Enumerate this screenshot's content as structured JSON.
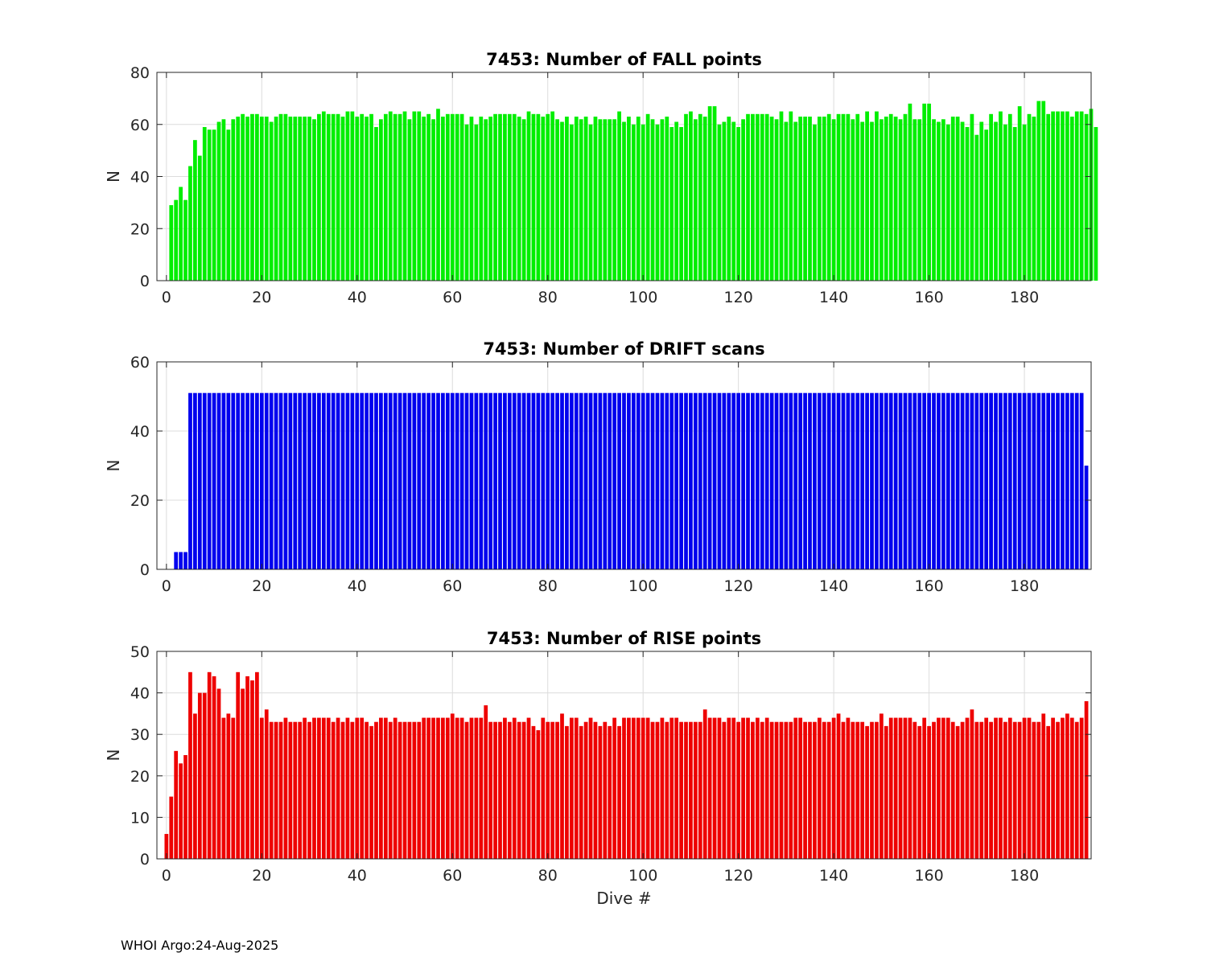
{
  "footer": {
    "text": "WHOI Argo:24-Aug-2025"
  },
  "chart_data": [
    {
      "type": "bar",
      "title": "7453: Number of FALL points",
      "xlabel": "",
      "ylabel": "N",
      "color": "#00ee00",
      "xlim": [
        -2,
        194
      ],
      "ylim": [
        0,
        80
      ],
      "xticks": [
        0,
        20,
        40,
        60,
        80,
        100,
        120,
        140,
        160,
        180
      ],
      "yticks": [
        0,
        20,
        40,
        60,
        80
      ],
      "grid": true,
      "x_start": 1,
      "values": [
        29,
        31,
        36,
        31,
        44,
        54,
        48,
        59,
        58,
        58,
        61,
        62,
        58,
        62,
        63,
        64,
        63,
        64,
        64,
        63,
        63,
        61,
        63,
        64,
        64,
        63,
        63,
        63,
        63,
        63,
        62,
        64,
        65,
        64,
        64,
        64,
        63,
        65,
        65,
        63,
        64,
        63,
        64,
        59,
        62,
        64,
        65,
        64,
        64,
        65,
        62,
        65,
        65,
        63,
        64,
        62,
        66,
        63,
        64,
        64,
        64,
        64,
        60,
        63,
        60,
        63,
        62,
        63,
        64,
        64,
        64,
        64,
        64,
        63,
        62,
        65,
        64,
        64,
        63,
        64,
        65,
        62,
        61,
        63,
        60,
        63,
        62,
        63,
        60,
        63,
        62,
        62,
        62,
        62,
        65,
        61,
        63,
        60,
        63,
        60,
        64,
        62,
        60,
        62,
        63,
        59,
        61,
        59,
        64,
        65,
        62,
        64,
        63,
        67,
        67,
        60,
        61,
        63,
        61,
        59,
        62,
        64,
        64,
        64,
        64,
        64,
        63,
        62,
        65,
        61,
        65,
        61,
        63,
        63,
        63,
        60,
        63,
        63,
        64,
        62,
        64,
        64,
        64,
        62,
        64,
        61,
        65,
        61,
        65,
        62,
        63,
        64,
        63,
        62,
        64,
        68,
        62,
        62,
        68,
        68,
        62,
        61,
        62,
        60,
        63,
        63,
        61,
        59,
        64,
        56,
        61,
        58,
        64,
        61,
        65,
        60,
        64,
        59,
        67,
        60,
        64,
        63,
        69,
        69,
        64,
        65,
        65,
        65,
        65,
        63,
        65,
        65,
        64,
        66,
        59
      ]
    },
    {
      "type": "bar",
      "title": "7453: Number of DRIFT scans",
      "xlabel": "",
      "ylabel": "N",
      "color": "#0000ee",
      "xlim": [
        -2,
        194
      ],
      "ylim": [
        0,
        60
      ],
      "xticks": [
        0,
        20,
        40,
        60,
        80,
        100,
        120,
        140,
        160,
        180
      ],
      "yticks": [
        0,
        20,
        40,
        60
      ],
      "grid": true,
      "x_start": 1,
      "values": [
        0,
        5,
        5,
        5,
        51,
        51,
        51,
        51,
        51,
        51,
        51,
        51,
        51,
        51,
        51,
        51,
        51,
        51,
        51,
        51,
        51,
        51,
        51,
        51,
        51,
        51,
        51,
        51,
        51,
        51,
        51,
        51,
        51,
        51,
        51,
        51,
        51,
        51,
        51,
        51,
        51,
        51,
        51,
        51,
        51,
        51,
        51,
        51,
        51,
        51,
        51,
        51,
        51,
        51,
        51,
        51,
        51,
        51,
        51,
        51,
        51,
        51,
        51,
        51,
        51,
        51,
        51,
        51,
        51,
        51,
        51,
        51,
        51,
        51,
        51,
        51,
        51,
        51,
        51,
        51,
        51,
        51,
        51,
        51,
        51,
        51,
        51,
        51,
        51,
        51,
        51,
        51,
        51,
        51,
        51,
        51,
        51,
        51,
        51,
        51,
        51,
        51,
        51,
        51,
        51,
        51,
        51,
        51,
        51,
        51,
        51,
        51,
        51,
        51,
        51,
        51,
        51,
        51,
        51,
        51,
        51,
        51,
        51,
        51,
        51,
        51,
        51,
        51,
        51,
        51,
        51,
        51,
        51,
        51,
        51,
        51,
        51,
        51,
        51,
        51,
        51,
        51,
        51,
        51,
        51,
        51,
        51,
        51,
        51,
        51,
        51,
        51,
        51,
        51,
        51,
        51,
        51,
        51,
        51,
        51,
        51,
        51,
        51,
        51,
        51,
        51,
        51,
        51,
        51,
        51,
        51,
        51,
        51,
        51,
        51,
        51,
        51,
        51,
        51,
        51,
        51,
        51,
        51,
        51,
        51,
        51,
        51,
        51,
        51,
        51,
        51,
        51,
        30
      ]
    },
    {
      "type": "bar",
      "title": "7453: Number of RISE points",
      "xlabel": "Dive #",
      "ylabel": "N",
      "color": "#ee0000",
      "xlim": [
        -2,
        194
      ],
      "ylim": [
        0,
        50
      ],
      "xticks": [
        0,
        20,
        40,
        60,
        80,
        100,
        120,
        140,
        160,
        180
      ],
      "yticks": [
        0,
        10,
        20,
        30,
        40,
        50
      ],
      "grid": true,
      "x_start": 0,
      "values": [
        6,
        15,
        26,
        23,
        25,
        45,
        35,
        40,
        40,
        45,
        44,
        41,
        34,
        35,
        34,
        45,
        41,
        44,
        43,
        45,
        34,
        36,
        33,
        33,
        33,
        34,
        33,
        33,
        33,
        34,
        33,
        34,
        34,
        34,
        34,
        33,
        34,
        33,
        34,
        33,
        34,
        34,
        33,
        32,
        33,
        34,
        34,
        33,
        34,
        33,
        33,
        33,
        33,
        33,
        34,
        34,
        34,
        34,
        34,
        34,
        35,
        34,
        34,
        33,
        34,
        34,
        34,
        37,
        33,
        33,
        33,
        34,
        33,
        34,
        33,
        33,
        34,
        32,
        31,
        34,
        33,
        33,
        33,
        35,
        32,
        34,
        34,
        32,
        33,
        34,
        33,
        32,
        33,
        32,
        34,
        32,
        34,
        34,
        34,
        34,
        34,
        34,
        33,
        33,
        34,
        33,
        34,
        34,
        33,
        33,
        33,
        33,
        33,
        36,
        34,
        34,
        34,
        33,
        34,
        34,
        33,
        34,
        34,
        33,
        34,
        33,
        34,
        33,
        33,
        33,
        33,
        33,
        34,
        34,
        33,
        33,
        33,
        34,
        33,
        33,
        34,
        35,
        33,
        34,
        33,
        33,
        33,
        32,
        33,
        33,
        35,
        32,
        34,
        34,
        34,
        34,
        34,
        33,
        32,
        34,
        32,
        33,
        34,
        34,
        34,
        33,
        32,
        33,
        34,
        36,
        33,
        33,
        34,
        33,
        34,
        34,
        33,
        34,
        33,
        33,
        34,
        34,
        33,
        33,
        35,
        32,
        34,
        33,
        34,
        35,
        34,
        33,
        34,
        38
      ]
    }
  ]
}
